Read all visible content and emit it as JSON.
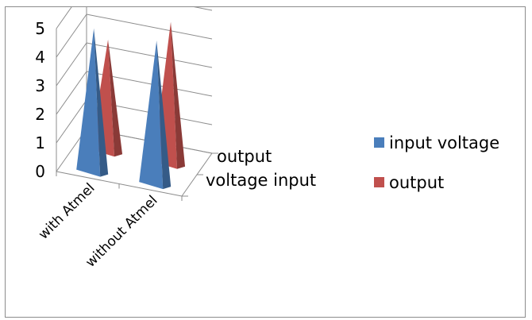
{
  "chart_data": {
    "type": "bar",
    "style": "3d-pyramid",
    "categories": [
      "with Atmel",
      "without Atmel"
    ],
    "series": [
      {
        "name": "input voltage",
        "values": [
          5,
          5
        ],
        "color": "#4a7ebb"
      },
      {
        "name": "output",
        "values": [
          3.9,
          4.95
        ],
        "color": "#c0504d"
      }
    ],
    "depth_labels": [
      "output",
      "voltage input"
    ],
    "y_ticks": [
      "0",
      "1",
      "2",
      "3",
      "4",
      "5"
    ],
    "ylim": [
      0,
      5
    ],
    "title": "",
    "xlabel": "",
    "ylabel": "",
    "grid": true,
    "legend_position": "right"
  }
}
